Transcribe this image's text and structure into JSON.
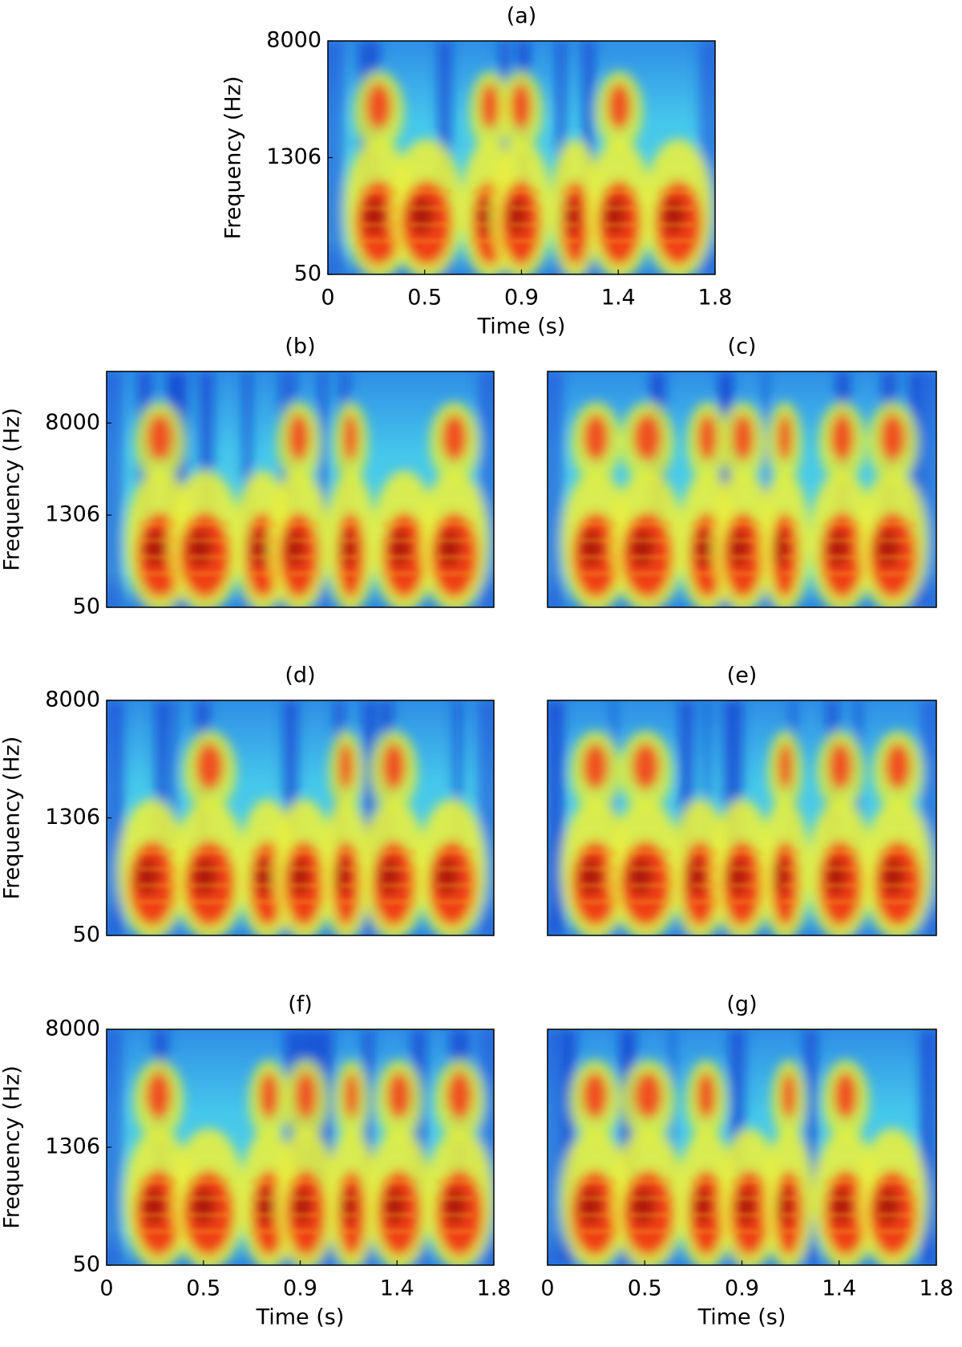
{
  "chart_data": [
    {
      "type": "spectrogram",
      "title": "(a)",
      "xlabel": "Time (s)",
      "ylabel": "Frequency (Hz)",
      "xlim": [
        0,
        1.8
      ],
      "xticks": [
        0,
        {
          "value": 0.45,
          "label": "0.5"
        },
        0.9,
        {
          "value": 1.35,
          "label": "1.4"
        },
        1.8
      ],
      "ylim": [
        50,
        8000
      ],
      "yticks": [
        50,
        1306,
        8000
      ]
    },
    {
      "type": "spectrogram",
      "title": "(b)",
      "ylabel": "Frequency (Hz)",
      "xlim": [
        0,
        1.8
      ],
      "ylim": [
        50,
        22050
      ],
      "yticks": [
        50,
        1306,
        8000
      ]
    },
    {
      "type": "spectrogram",
      "title": "(c)",
      "xlim": [
        0,
        1.8
      ],
      "ylim": [
        50,
        22050
      ]
    },
    {
      "type": "spectrogram",
      "title": "(d)",
      "ylabel": "Frequency (Hz)",
      "xlim": [
        0,
        1.8
      ],
      "ylim": [
        50,
        8000
      ],
      "yticks": [
        50,
        1306,
        8000
      ]
    },
    {
      "type": "spectrogram",
      "title": "(e)",
      "xlim": [
        0,
        1.8
      ],
      "ylim": [
        50,
        8000
      ]
    },
    {
      "type": "spectrogram",
      "title": "(f)",
      "xlabel": "Time (s)",
      "ylabel": "Frequency (Hz)",
      "xlim": [
        0,
        1.8
      ],
      "xticks": [
        0,
        {
          "value": 0.45,
          "label": "0.5"
        },
        0.9,
        {
          "value": 1.35,
          "label": "1.4"
        },
        1.8
      ],
      "ylim": [
        50,
        8000
      ],
      "yticks": [
        50,
        1306,
        8000
      ]
    },
    {
      "type": "spectrogram",
      "title": "(g)",
      "xlabel": "Time (s)",
      "xlim": [
        0,
        1.8
      ],
      "xticks": [
        0,
        {
          "value": 0.45,
          "label": "0.5"
        },
        0.9,
        {
          "value": 1.35,
          "label": "1.4"
        },
        1.8
      ],
      "ylim": [
        50,
        8000
      ]
    }
  ]
}
